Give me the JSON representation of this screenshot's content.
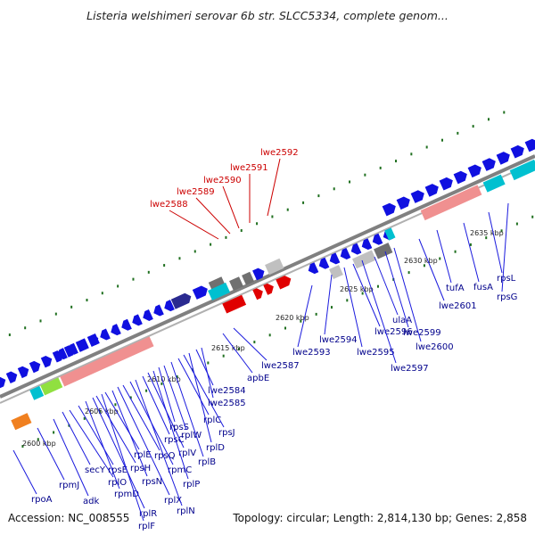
{
  "header": {
    "title": "Listeria welshimeri serovar 6b str. SLCC5334, complete genom..."
  },
  "footer": {
    "accession": "Accession: NC_008555",
    "summary": "Topology: circular; Length: 2,814,130 bp; Genes: 2,858"
  },
  "colors": {
    "backbone": "#808080",
    "highlight_label": "#cc0000",
    "gene_label": "#00008b",
    "forward_gene": "#1010e0",
    "reverse_gene": "#e00000",
    "rrna": "#f09090",
    "trna": "#00c0d0",
    "pseudo": "#c0c0c0",
    "other": "#707070",
    "tick": "#207020"
  },
  "map": {
    "kbp_ticks": [
      "2600 kbp",
      "2605 kbp",
      "2610 kbp",
      "2615 kbp",
      "2620 kbp",
      "2625 kbp",
      "2630 kbp",
      "2635 kbp"
    ],
    "highlighted_genes": [
      "lwe2588",
      "lwe2589",
      "lwe2590",
      "lwe2591",
      "lwe2592"
    ],
    "gene_labels": [
      "rpoA",
      "rpmJ",
      "adk",
      "secY",
      "rplO",
      "rpsE",
      "rpmD",
      "rplR",
      "rpsH",
      "rplF",
      "rplE",
      "rpsN",
      "rplX",
      "rpsQ",
      "rpmC",
      "rplN",
      "rpsC",
      "rplV",
      "rplP",
      "rpsS",
      "rplW",
      "rplB",
      "rplC",
      "rpsJ",
      "rplD",
      "lwe2584",
      "lwe2585",
      "apbE",
      "lwe2587",
      "lwe2593",
      "lwe2594",
      "lwe2595",
      "lwe2596",
      "lwe2597",
      "ulaA",
      "lwe2599",
      "lwe2600",
      "lwe2601",
      "tufA",
      "fusA",
      "rpsL",
      "rpsG"
    ]
  }
}
